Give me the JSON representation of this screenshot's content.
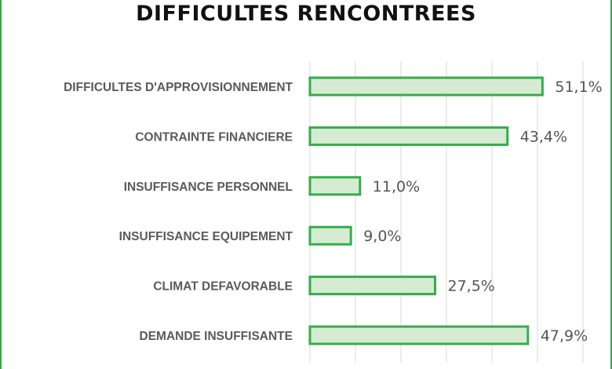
{
  "chart_data": {
    "type": "bar",
    "orientation": "horizontal",
    "title": "DIFFICULTES RENCONTREES",
    "categories": [
      "DIFFICULTES D'APPROVISIONNEMENT",
      "CONTRAINTE FINANCIERE",
      "INSUFFISANCE PERSONNEL",
      "INSUFFISANCE EQUIPEMENT",
      "CLIMAT DEFAVORABLE",
      "DEMANDE INSUFFISANTE"
    ],
    "values": [
      51.1,
      43.4,
      11.0,
      9.0,
      27.5,
      47.9
    ],
    "value_labels": [
      "51,1%",
      "43,4%",
      "11,0%",
      "9,0%",
      "27,5%",
      "47,9%"
    ],
    "xlim": [
      0,
      60
    ],
    "grid": true,
    "legend": "none",
    "colors": {
      "bar_fill": "#d6ecd2",
      "bar_stroke": "#35ad4b",
      "gridline": "#d9d9d9",
      "frame": "#3aa64a"
    }
  }
}
